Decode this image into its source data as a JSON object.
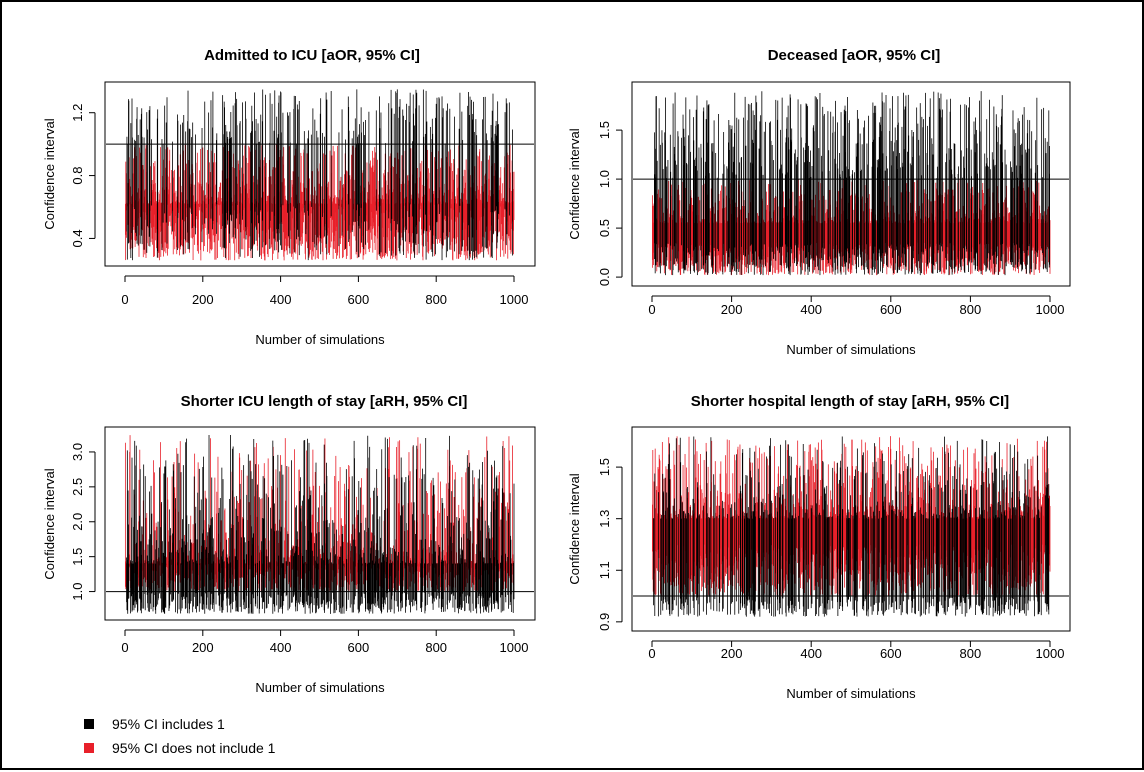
{
  "legend": {
    "items": [
      {
        "label": "95% CI includes 1",
        "color": "#000000"
      },
      {
        "label": "95% CI does not include 1",
        "color": "#e8202a"
      }
    ]
  },
  "chart_data": [
    {
      "type": "line",
      "title": "Admitted to ICU [aOR, 95% CI]",
      "xlabel": "Number of simulations",
      "ylabel": "Confidence interval",
      "n_simulations": 1000,
      "xlim": [
        0,
        1000
      ],
      "ylim": [
        0.25,
        1.37
      ],
      "xticks": [
        0,
        200,
        400,
        600,
        800,
        1000
      ],
      "yticks": [
        0.4,
        0.8,
        1.2
      ],
      "ytick_labels": [
        "0.4",
        "0.8",
        "1.2"
      ],
      "reference_line": 1.0,
      "ci_lower_range": [
        0.26,
        0.62
      ],
      "ci_upper_range": [
        0.62,
        1.35
      ],
      "series": [
        {
          "name": "95% CI includes 1",
          "color": "#000000"
        },
        {
          "name": "95% CI does not include 1",
          "color": "#e8202a"
        }
      ]
    },
    {
      "type": "line",
      "title": "Deceased [aOR, 95% CI]",
      "xlabel": "Number of simulations",
      "ylabel": "Confidence interval",
      "n_simulations": 1000,
      "xlim": [
        0,
        1000
      ],
      "ylim": [
        -0.05,
        1.95
      ],
      "xticks": [
        0,
        200,
        400,
        600,
        800,
        1000
      ],
      "yticks": [
        0.0,
        0.5,
        1.0,
        1.5
      ],
      "ytick_labels": [
        "0.0",
        "0.5",
        "1.0",
        "1.5"
      ],
      "reference_line": 1.0,
      "ci_lower_range": [
        0.02,
        0.35
      ],
      "ci_upper_range": [
        0.55,
        1.9
      ],
      "series": [
        {
          "name": "95% CI includes 1",
          "color": "#000000"
        },
        {
          "name": "95% CI does not include 1",
          "color": "#e8202a"
        }
      ]
    },
    {
      "type": "line",
      "title": "Shorter ICU length of stay [aRH, 95% CI]",
      "xlabel": "Number of simulations",
      "ylabel": "Confidence interval",
      "n_simulations": 1000,
      "xlim": [
        0,
        1000
      ],
      "ylim": [
        0.65,
        3.3
      ],
      "xticks": [
        0,
        200,
        400,
        600,
        800,
        1000
      ],
      "yticks": [
        1.0,
        1.5,
        2.0,
        2.5,
        3.0
      ],
      "ytick_labels": [
        "1.0",
        "1.5",
        "2.0",
        "2.5",
        "3.0"
      ],
      "reference_line": 1.0,
      "ci_lower_range": [
        0.68,
        1.4
      ],
      "ci_upper_range": [
        1.4,
        3.25
      ],
      "series": [
        {
          "name": "95% CI includes 1",
          "color": "#000000"
        },
        {
          "name": "95% CI does not include 1",
          "color": "#e8202a"
        }
      ]
    },
    {
      "type": "line",
      "title": "Shorter hospital length of stay [aRH, 95% CI]",
      "xlabel": "Number of simulations",
      "ylabel": "Confidence interval",
      "n_simulations": 1000,
      "xlim": [
        0,
        1000
      ],
      "ylim": [
        0.88,
        1.64
      ],
      "xticks": [
        0,
        200,
        400,
        600,
        800,
        1000
      ],
      "yticks": [
        0.9,
        1.1,
        1.3,
        1.5
      ],
      "ytick_labels": [
        "0.9",
        "1.1",
        "1.3",
        "1.5"
      ],
      "reference_line": 1.0,
      "ci_lower_range": [
        0.92,
        1.2
      ],
      "ci_upper_range": [
        1.3,
        1.62
      ],
      "series": [
        {
          "name": "95% CI includes 1",
          "color": "#000000"
        },
        {
          "name": "95% CI does not include 1",
          "color": "#e8202a"
        }
      ]
    }
  ]
}
